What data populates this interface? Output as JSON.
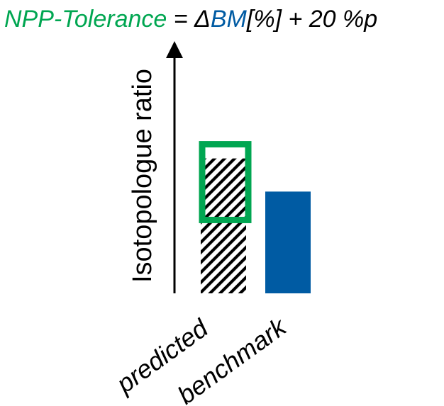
{
  "formula": {
    "part1": "NPP-Tolerance",
    "part2": " = Δ",
    "part3": "BM",
    "part4": "[%] + 20 %p"
  },
  "axis": {
    "y_label": "Isotopologue ratio"
  },
  "categories": {
    "predicted": "predicted",
    "benchmark": "benchmark"
  },
  "colors": {
    "tolerance_green": "#00A651",
    "benchmark_blue": "#005BA3",
    "text_black": "#000000",
    "hatch": "#000000"
  },
  "chart_data": {
    "type": "bar",
    "categories": [
      "predicted",
      "benchmark"
    ],
    "values": [
      0.57,
      0.43
    ],
    "tolerance_band": {
      "category": "predicted",
      "lower": 0.31,
      "upper": 0.63
    },
    "ylabel": "Isotopologue ratio",
    "grid": false
  }
}
